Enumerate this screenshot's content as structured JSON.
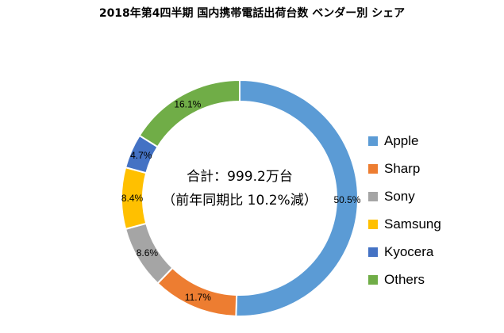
{
  "chart_data": {
    "type": "pie",
    "title": "2018年第4四半期 国内携帯電話出荷台数 ベンダー別 シェア",
    "center_label_line1": "合計：999.2万台",
    "center_label_line2": "（前年同期比 10.2%減）",
    "slices": [
      {
        "label": "Apple",
        "value": 50.5,
        "value_label": "50.5%",
        "color": "#5b9bd5"
      },
      {
        "label": "Sharp",
        "value": 11.7,
        "value_label": "11.7%",
        "color": "#ed7d31"
      },
      {
        "label": "Sony",
        "value": 8.6,
        "value_label": "8.6%",
        "color": "#a5a5a5"
      },
      {
        "label": "Samsung",
        "value": 8.4,
        "value_label": "8.4%",
        "color": "#ffc000"
      },
      {
        "label": "Kyocera",
        "value": 4.7,
        "value_label": "4.7%",
        "color": "#4472c4"
      },
      {
        "label": "Others",
        "value": 16.1,
        "value_label": "16.1%",
        "color": "#70ad47"
      }
    ],
    "legend_position": "right"
  }
}
